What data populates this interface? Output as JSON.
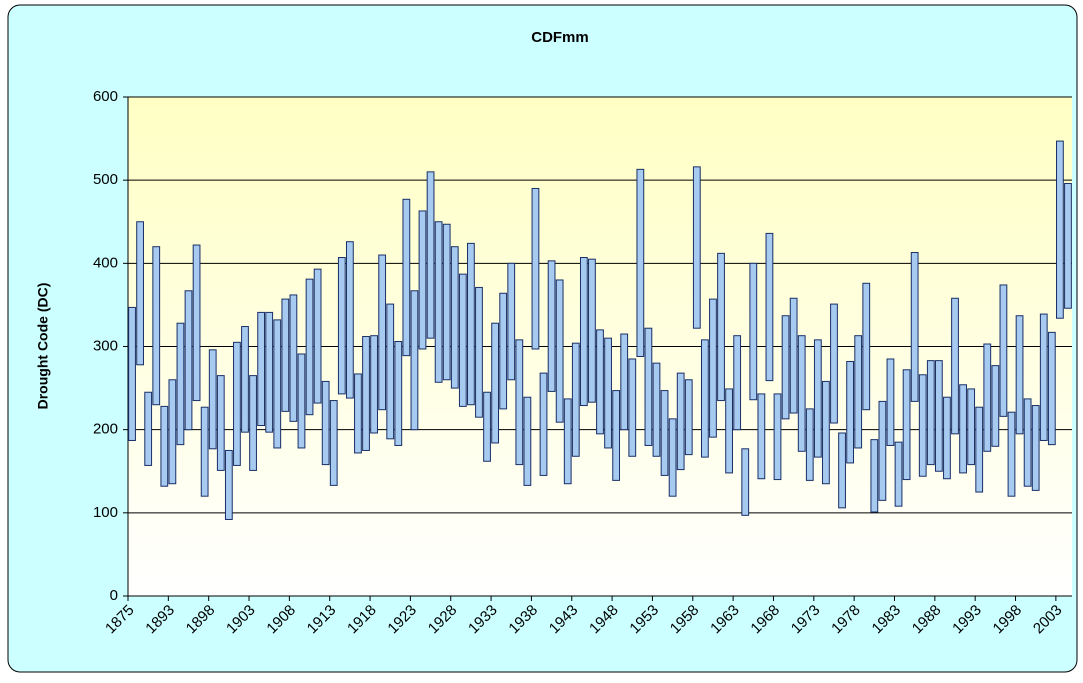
{
  "chart_data": {
    "type": "floating-bar",
    "title": "CDFmm",
    "y_label": "Drought Code (DC)",
    "categories": [
      "1875",
      null,
      null,
      null,
      null,
      "1893",
      null,
      null,
      null,
      null,
      "1898",
      null,
      null,
      null,
      null,
      "1903",
      null,
      null,
      null,
      null,
      "1908",
      null,
      null,
      null,
      null,
      "1913",
      null,
      null,
      null,
      null,
      "1918",
      null,
      null,
      null,
      null,
      "1923",
      null,
      null,
      null,
      null,
      "1928",
      null,
      null,
      null,
      null,
      "1933",
      null,
      null,
      null,
      null,
      "1938",
      null,
      null,
      null,
      null,
      "1943",
      null,
      null,
      null,
      null,
      "1948",
      null,
      null,
      null,
      null,
      "1953",
      null,
      null,
      null,
      null,
      "1958",
      null,
      null,
      null,
      null,
      "1963",
      null,
      null,
      null,
      null,
      "1968",
      null,
      null,
      null,
      null,
      "1973",
      null,
      null,
      null,
      null,
      "1978",
      null,
      null,
      null,
      null,
      "1983",
      null,
      null,
      null,
      null,
      "1988",
      null,
      null,
      null,
      null,
      "1993",
      null,
      null,
      null,
      null,
      "1998",
      null,
      null,
      null,
      null,
      "2003",
      null
    ],
    "low": [
      187,
      278,
      157,
      230,
      132,
      135,
      182,
      200,
      235,
      120,
      177,
      151,
      92,
      157,
      197,
      151,
      205,
      197,
      178,
      222,
      210,
      178,
      218,
      232,
      158,
      133,
      243,
      238,
      172,
      175,
      196,
      224,
      189,
      181,
      289,
      200,
      297,
      310,
      257,
      260,
      250,
      228,
      230,
      215,
      162,
      184,
      225,
      260,
      158,
      133,
      297,
      145,
      246,
      209,
      135,
      168,
      229,
      233,
      195,
      178,
      139,
      200,
      168,
      288,
      181,
      168,
      145,
      120,
      152,
      170,
      322,
      167,
      191,
      235,
      148,
      200,
      97,
      236,
      141,
      259,
      140,
      213,
      220,
      174,
      139,
      167,
      135,
      208,
      106,
      160,
      178,
      224,
      101,
      115,
      181,
      108,
      140,
      234,
      144,
      158,
      150,
      141,
      195,
      148,
      158,
      125,
      174,
      180,
      216,
      120,
      195,
      132,
      127,
      187,
      182,
      334,
      346
    ],
    "high": [
      347,
      450,
      245,
      420,
      228,
      260,
      328,
      367,
      422,
      227,
      296,
      265,
      175,
      305,
      324,
      265,
      341,
      341,
      332,
      357,
      362,
      291,
      381,
      393,
      258,
      235,
      407,
      426,
      267,
      312,
      313,
      410,
      351,
      306,
      477,
      367,
      463,
      510,
      450,
      447,
      420,
      387,
      424,
      371,
      245,
      328,
      364,
      400,
      308,
      239,
      490,
      268,
      403,
      380,
      237,
      304,
      407,
      405,
      320,
      310,
      247,
      315,
      285,
      513,
      322,
      280,
      247,
      213,
      268,
      260,
      516,
      308,
      357,
      412,
      249,
      313,
      177,
      400,
      243,
      436,
      243,
      337,
      358,
      313,
      225,
      308,
      258,
      351,
      196,
      282,
      313,
      376,
      188,
      234,
      285,
      185,
      272,
      413,
      266,
      283,
      283,
      239,
      358,
      254,
      249,
      227,
      303,
      277,
      374,
      221,
      337,
      237,
      229,
      339,
      317,
      547,
      496
    ],
    "color": "#a6caf0",
    "edge_color": "#1a2f66",
    "ylim": [
      0,
      600
    ],
    "yticks": [
      0,
      100,
      200,
      300,
      400,
      500,
      600
    ],
    "grid": true
  }
}
